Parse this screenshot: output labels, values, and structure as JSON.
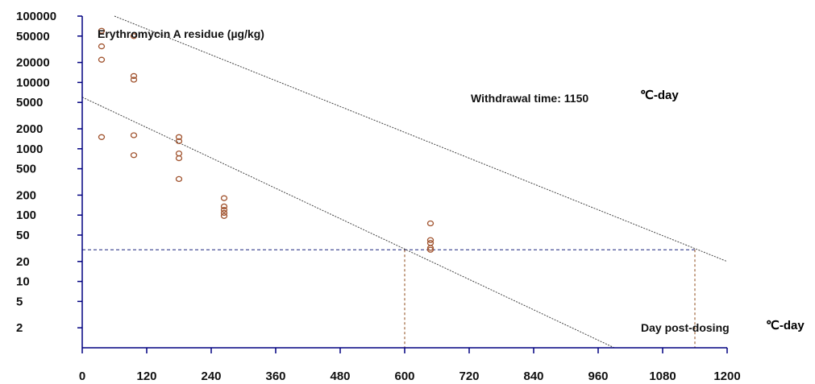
{
  "chart_data": {
    "type": "scatter",
    "title": "",
    "ylabel": "Erythromycin A residue (µg/kg)",
    "xlabel": "Day post-dosing",
    "xlabel_unit": "℃-day",
    "annotation": "Withdrawal time: 1150",
    "annotation_unit": "℃-day",
    "y_scale": "log",
    "xlim": [
      0,
      1200
    ],
    "ylim": [
      1,
      100000
    ],
    "x_ticks": [
      0,
      120,
      240,
      360,
      480,
      600,
      720,
      840,
      960,
      1080,
      1200
    ],
    "y_ticks": [
      100000,
      50000,
      20000,
      10000,
      5000,
      2000,
      1000,
      500,
      200,
      100,
      50,
      20,
      10,
      5,
      2
    ],
    "series": [
      {
        "points": [
          {
            "x": 36,
            "y": 60000
          },
          {
            "x": 36,
            "y": 35000
          },
          {
            "x": 36,
            "y": 22000
          },
          {
            "x": 36,
            "y": 1500
          },
          {
            "x": 96,
            "y": 50000
          },
          {
            "x": 96,
            "y": 12500
          },
          {
            "x": 96,
            "y": 11000
          },
          {
            "x": 96,
            "y": 1600
          },
          {
            "x": 96,
            "y": 800
          },
          {
            "x": 180,
            "y": 1500
          },
          {
            "x": 180,
            "y": 1300
          },
          {
            "x": 180,
            "y": 850
          },
          {
            "x": 180,
            "y": 720
          },
          {
            "x": 180,
            "y": 350
          },
          {
            "x": 264,
            "y": 180
          },
          {
            "x": 264,
            "y": 135
          },
          {
            "x": 264,
            "y": 120
          },
          {
            "x": 264,
            "y": 108
          },
          {
            "x": 264,
            "y": 97
          },
          {
            "x": 648,
            "y": 75
          },
          {
            "x": 648,
            "y": 42
          },
          {
            "x": 648,
            "y": 38
          },
          {
            "x": 648,
            "y": 32
          },
          {
            "x": 648,
            "y": 30
          }
        ]
      }
    ],
    "regression_line": {
      "points": [
        {
          "x": 0,
          "y": 6000
        },
        {
          "x": 990,
          "y": 1
        }
      ]
    },
    "tolerance_line": {
      "points": [
        {
          "x": 60,
          "y": 100000
        },
        {
          "x": 1200,
          "y": 20
        }
      ]
    },
    "mrl_level": 30,
    "reference_lines_x": [
      600,
      1140
    ],
    "colors": {
      "points": "#a0522d",
      "fit_lines": "#444444",
      "mrl_line": "#1a237e",
      "drop_lines": "#8b4513",
      "axis": "#000080"
    }
  }
}
